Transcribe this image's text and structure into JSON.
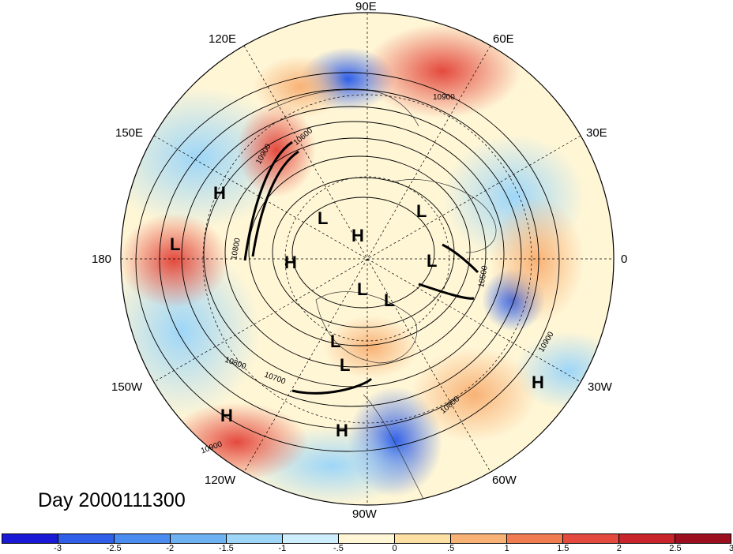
{
  "title": "Day 2000111300",
  "longitude_labels": {
    "n90e": "90E",
    "n120e": "120E",
    "n60e": "60E",
    "n150e": "150E",
    "n30e": "30E",
    "n180": "180",
    "n0": "0",
    "n150w": "150W",
    "n30w": "30W",
    "n120w": "120W",
    "n60w": "60W",
    "n90w": "90W"
  },
  "pressure_centers": [
    "H",
    "L",
    "H",
    "L",
    "L",
    "H",
    "L",
    "L",
    "L",
    "L",
    "L",
    "H",
    "H",
    "H"
  ],
  "contour_labels": [
    "10900",
    "10600",
    "10800",
    "10900",
    "10500",
    "10900",
    "10800",
    "10700",
    "10800",
    "10900"
  ],
  "colorbar": {
    "ticks": [
      "-3",
      "-2.5",
      "-2",
      "-1.5",
      "-1",
      "-.5",
      "0",
      ".5",
      "1",
      "1.5",
      "2",
      "2.5",
      "3"
    ],
    "colors": [
      "#1a1ad6",
      "#2f5fe8",
      "#4a8cf0",
      "#6fb2f4",
      "#9ed6f8",
      "#cdeefc",
      "#fff6d6",
      "#fde0a2",
      "#f8b276",
      "#f17c52",
      "#e44a3e",
      "#c8242c",
      "#9c0f1f"
    ]
  }
}
